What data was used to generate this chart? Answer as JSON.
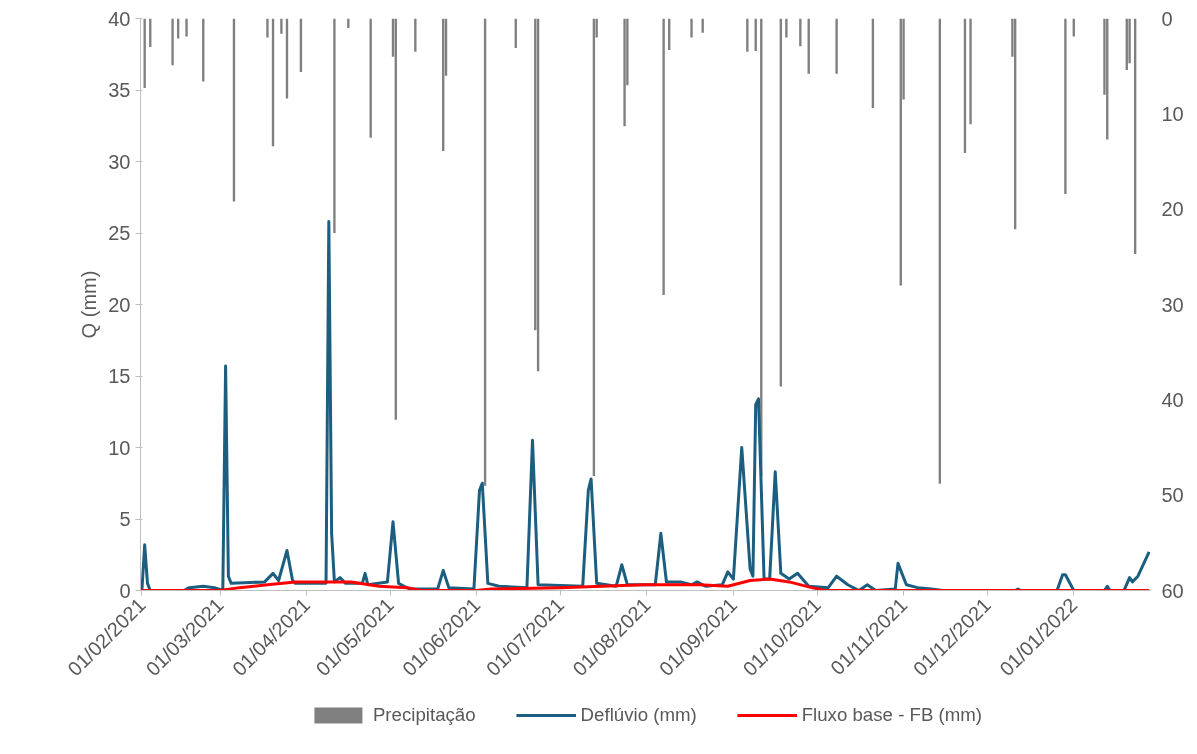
{
  "chart_data": {
    "type": "line",
    "ylabel": "Q (mm)",
    "xlim": [
      "2021-01-31T12:00",
      "2022-01-28T12:00"
    ],
    "xticks": [
      {
        "value": "2021-02-01",
        "label": "01/02/2021"
      },
      {
        "value": "2021-03-01",
        "label": "01/03/2021"
      },
      {
        "value": "2021-04-01",
        "label": "01/04/2021"
      },
      {
        "value": "2021-05-01",
        "label": "01/05/2021"
      },
      {
        "value": "2021-06-01",
        "label": "01/06/2021"
      },
      {
        "value": "2021-07-01",
        "label": "01/07/2021"
      },
      {
        "value": "2021-08-01",
        "label": "01/08/2021"
      },
      {
        "value": "2021-09-01",
        "label": "01/09/2021"
      },
      {
        "value": "2021-10-01",
        "label": "01/10/2021"
      },
      {
        "value": "2021-11-01",
        "label": "01/11/2021"
      },
      {
        "value": "2021-12-01",
        "label": "01/12/2021"
      },
      {
        "value": "2022-01-01",
        "label": "01/01/2022"
      }
    ],
    "ylim": [
      0,
      40
    ],
    "yticks": [
      0,
      5,
      10,
      15,
      20,
      25,
      30,
      35,
      40
    ],
    "y2lim": [
      60,
      0
    ],
    "y2ticks": [
      0,
      10,
      20,
      30,
      40,
      50,
      60
    ],
    "grid": false,
    "legend": "bottom",
    "series": [
      {
        "name": "Precipitação",
        "type": "bar",
        "axis": "y2",
        "color": "#808080",
        "x": [
          "2021-02-02",
          "2021-02-04",
          "2021-02-12",
          "2021-02-14",
          "2021-02-17",
          "2021-02-23",
          "2021-03-06",
          "2021-03-18",
          "2021-03-20",
          "2021-03-23",
          "2021-03-25",
          "2021-03-30",
          "2021-04-11",
          "2021-04-16",
          "2021-04-24",
          "2021-05-02",
          "2021-05-03",
          "2021-05-10",
          "2021-05-20",
          "2021-05-21",
          "2021-06-04",
          "2021-06-15",
          "2021-06-22",
          "2021-06-23",
          "2021-07-13",
          "2021-07-14",
          "2021-07-24",
          "2021-07-25",
          "2021-08-07",
          "2021-08-09",
          "2021-08-17",
          "2021-08-21",
          "2021-09-06",
          "2021-09-09",
          "2021-09-11",
          "2021-09-18",
          "2021-09-20",
          "2021-09-25",
          "2021-09-28",
          "2021-10-08",
          "2021-10-21",
          "2021-10-31",
          "2021-11-01",
          "2021-11-14",
          "2021-11-23",
          "2021-11-25",
          "2021-12-10",
          "2021-12-11",
          "2021-12-29",
          "2022-01-01",
          "2022-01-12",
          "2022-01-13",
          "2022-01-20",
          "2022-01-21",
          "2022-01-23"
        ],
        "values": [
          7.3,
          3.0,
          4.9,
          2.1,
          1.9,
          6.6,
          19.2,
          2.0,
          13.4,
          1.6,
          8.4,
          5.6,
          22.5,
          1.0,
          12.5,
          4.0,
          42.1,
          3.5,
          13.9,
          6.0,
          49,
          3.1,
          32.7,
          37.0,
          48,
          2.0,
          11.3,
          7.0,
          29.0,
          3.3,
          2.0,
          1.5,
          3.5,
          3.4,
          48,
          38.6,
          2.0,
          2.9,
          5.8,
          5.8,
          9.4,
          28.0,
          8.5,
          48.8,
          14.1,
          11.1,
          4.0,
          22.1,
          18.4,
          1.9,
          8.0,
          12.7,
          5.4,
          4.7,
          24.7
        ]
      },
      {
        "name": "Deflúvio (mm)",
        "color": "#1b5e80",
        "x": [
          "2021-02-01",
          "2021-02-02",
          "2021-02-03",
          "2021-02-04",
          "2021-02-16",
          "2021-02-18",
          "2021-02-23",
          "2021-02-27",
          "2021-03-02",
          "2021-03-03",
          "2021-03-04",
          "2021-03-05",
          "2021-03-17",
          "2021-03-20",
          "2021-03-22",
          "2021-03-25",
          "2021-03-27",
          "2021-03-28",
          "2021-04-07",
          "2021-04-08",
          "2021-04-09",
          "2021-04-10",
          "2021-04-11",
          "2021-04-13",
          "2021-04-15",
          "2021-04-21",
          "2021-04-22",
          "2021-04-23",
          "2021-04-30",
          "2021-05-02",
          "2021-05-04",
          "2021-05-06",
          "2021-05-08",
          "2021-05-18",
          "2021-05-20",
          "2021-05-22",
          "2021-05-31",
          "2021-06-02",
          "2021-06-03",
          "2021-06-05",
          "2021-06-09",
          "2021-06-19",
          "2021-06-21",
          "2021-06-23",
          "2021-07-09",
          "2021-07-11",
          "2021-07-12",
          "2021-07-14",
          "2021-07-21",
          "2021-07-23",
          "2021-07-25",
          "2021-08-04",
          "2021-08-06",
          "2021-08-08",
          "2021-08-13",
          "2021-08-17",
          "2021-08-19",
          "2021-08-22",
          "2021-08-28",
          "2021-08-30",
          "2021-09-01",
          "2021-09-04",
          "2021-09-07",
          "2021-09-08",
          "2021-09-09",
          "2021-09-10",
          "2021-09-12",
          "2021-09-14",
          "2021-09-16",
          "2021-09-18",
          "2021-09-21",
          "2021-09-24",
          "2021-09-28",
          "2021-10-05",
          "2021-10-08",
          "2021-10-12",
          "2021-10-16",
          "2021-10-19",
          "2021-10-22",
          "2021-10-29",
          "2021-10-30",
          "2021-11-02",
          "2021-11-06",
          "2021-11-11",
          "2021-11-15",
          "2021-12-11",
          "2021-12-12",
          "2021-12-13",
          "2021-12-26",
          "2021-12-28",
          "2021-12-29",
          "2022-01-01",
          "2022-01-12",
          "2022-01-13",
          "2022-01-14",
          "2022-01-19",
          "2022-01-21",
          "2022-01-22",
          "2022-01-24",
          "2022-01-28"
        ],
        "values": [
          0.0,
          3.2,
          0.5,
          0.0,
          0.0,
          0.2,
          0.3,
          0.2,
          0.0,
          15.7,
          1.0,
          0.5,
          0.6,
          1.2,
          0.7,
          2.8,
          0.7,
          0.5,
          0.5,
          0.5,
          25.8,
          4.0,
          0.6,
          0.9,
          0.5,
          0.5,
          1.2,
          0.4,
          0.6,
          4.8,
          0.5,
          0.3,
          0.1,
          0.1,
          1.4,
          0.2,
          0.1,
          7.0,
          7.5,
          0.5,
          0.3,
          0.2,
          10.5,
          0.4,
          0.3,
          7.0,
          7.8,
          0.5,
          0.3,
          1.8,
          0.4,
          0.4,
          4.0,
          0.6,
          0.6,
          0.4,
          0.6,
          0.3,
          0.4,
          1.3,
          0.8,
          10.0,
          1.5,
          1.0,
          13.0,
          13.4,
          0.8,
          0.8,
          8.3,
          1.2,
          0.8,
          1.2,
          0.3,
          0.2,
          1.0,
          0.4,
          0.0,
          0.4,
          0.0,
          0.1,
          1.9,
          0.4,
          0.2,
          0.1,
          0.0,
          0.0,
          0.1,
          0.0,
          0.0,
          1.1,
          1.1,
          0.0,
          0.0,
          0.3,
          0.0,
          0.0,
          0.9,
          0.6,
          1.0,
          2.7
        ]
      },
      {
        "name": "Fluxo base - FB (mm)",
        "color": "#ff0000",
        "x": [
          "2021-02-01",
          "2021-03-01",
          "2021-03-08",
          "2021-03-18",
          "2021-03-28",
          "2021-04-09",
          "2021-04-17",
          "2021-04-27",
          "2021-05-07",
          "2021-05-12",
          "2021-06-01",
          "2021-06-06",
          "2021-07-01",
          "2021-07-31",
          "2021-08-20",
          "2021-08-30",
          "2021-09-07",
          "2021-09-14",
          "2021-09-21",
          "2021-09-29",
          "2021-10-04",
          "2022-01-28"
        ],
        "values": [
          0.0,
          0.0,
          0.2,
          0.4,
          0.6,
          0.6,
          0.6,
          0.3,
          0.2,
          0.0,
          0.0,
          0.1,
          0.2,
          0.4,
          0.4,
          0.3,
          0.7,
          0.8,
          0.6,
          0.2,
          0.0,
          0.0
        ]
      }
    ]
  }
}
